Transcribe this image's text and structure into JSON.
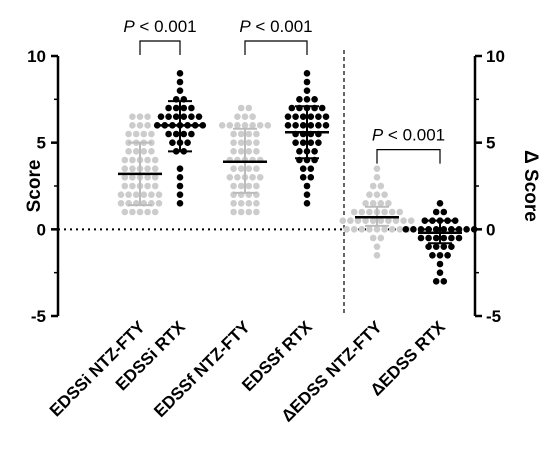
{
  "chart_data": {
    "type": "scatter",
    "subtype": "dot-plot with mean and SD",
    "title": "",
    "ylabel_left": "Score",
    "ylabel_right": "Δ Score",
    "ylim_left": [
      -5,
      10
    ],
    "ylim_right": [
      -5,
      10
    ],
    "yticks": [
      "-5",
      "0",
      "5",
      "10"
    ],
    "reference_line_y": 0,
    "colors": {
      "ntz_fty": "#cccccc",
      "rtx": "#000000",
      "mean_light": "#bbbbbb"
    },
    "categories": [
      "EDSSi NTZ-FTY",
      "EDSSi RTX",
      "EDSSf NTZ-FTY",
      "EDSSf RTX",
      "ΔEDSS NTZ-FTY",
      "ΔEDSS RTX"
    ],
    "series": [
      {
        "category": "EDSSi NTZ-FTY",
        "axis": "left",
        "color": "#cccccc",
        "mean": 3.2,
        "sd_low": 1.4,
        "sd_high": 5.0,
        "points": [
          1.0,
          1.0,
          1.0,
          1.0,
          1.0,
          1.5,
          1.5,
          1.5,
          1.5,
          1.5,
          1.5,
          2.0,
          2.0,
          2.0,
          2.0,
          2.0,
          2.0,
          2.5,
          2.5,
          2.5,
          2.5,
          2.5,
          3.0,
          3.0,
          3.0,
          3.0,
          3.0,
          3.5,
          3.5,
          3.5,
          3.5,
          3.5,
          4.0,
          4.0,
          4.0,
          4.0,
          4.0,
          4.5,
          4.5,
          4.5,
          4.5,
          5.0,
          5.0,
          5.0,
          5.0,
          5.5,
          5.5,
          5.5,
          5.5,
          6.0,
          6.0,
          6.0,
          6.5,
          6.5,
          6.5
        ]
      },
      {
        "category": "EDSSi RTX",
        "axis": "left",
        "color": "#000000",
        "mean": 6.0,
        "sd_low": 4.5,
        "sd_high": 7.4,
        "points": [
          1.5,
          2.0,
          2.5,
          3.0,
          3.5,
          4.5,
          4.5,
          5.0,
          5.0,
          5.0,
          5.5,
          5.5,
          5.5,
          5.5,
          6.0,
          6.0,
          6.0,
          6.0,
          6.0,
          6.0,
          6.0,
          6.5,
          6.5,
          6.5,
          6.5,
          6.5,
          6.5,
          7.0,
          7.0,
          7.0,
          7.0,
          7.5,
          7.5,
          8.0,
          8.5,
          9.0
        ]
      },
      {
        "category": "EDSSf NTZ-FTY",
        "axis": "left",
        "color": "#cccccc",
        "mean": 3.9,
        "sd_low": 2.1,
        "sd_high": 5.8,
        "points": [
          1.0,
          1.0,
          1.0,
          1.0,
          1.5,
          1.5,
          1.5,
          1.5,
          2.0,
          2.0,
          2.0,
          2.0,
          2.5,
          2.5,
          2.5,
          2.5,
          3.0,
          3.0,
          3.0,
          3.0,
          3.0,
          3.5,
          3.5,
          3.5,
          3.5,
          4.0,
          4.0,
          4.0,
          4.0,
          4.0,
          4.5,
          4.5,
          4.5,
          4.5,
          5.0,
          5.0,
          5.0,
          5.0,
          5.5,
          5.5,
          5.5,
          5.5,
          6.0,
          6.0,
          6.0,
          6.0,
          6.0,
          6.0,
          6.0,
          6.5,
          6.5,
          6.5,
          7.0,
          7.0
        ]
      },
      {
        "category": "EDSSf RTX",
        "axis": "left",
        "color": "#000000",
        "mean": 5.6,
        "sd_low": 4.1,
        "sd_high": 7.1,
        "points": [
          1.5,
          2.0,
          2.5,
          3.0,
          3.0,
          3.5,
          3.5,
          4.0,
          4.0,
          4.0,
          4.5,
          4.5,
          4.5,
          5.0,
          5.0,
          5.0,
          5.0,
          5.5,
          5.5,
          5.5,
          5.5,
          6.0,
          6.0,
          6.0,
          6.0,
          6.0,
          6.0,
          6.5,
          6.5,
          6.5,
          6.5,
          6.5,
          6.5,
          7.0,
          7.0,
          7.0,
          7.0,
          7.0,
          7.5,
          7.5,
          7.5,
          8.0,
          8.5,
          9.0
        ]
      },
      {
        "category": "ΔEDSS NTZ-FTY",
        "axis": "right",
        "color": "#cccccc",
        "mean": 0.7,
        "sd_low": 0.2,
        "sd_high": 1.3,
        "points": [
          -1.5,
          -1.0,
          -0.5,
          -0.5,
          0.0,
          0.0,
          0.0,
          0.0,
          0.0,
          0.0,
          0.0,
          0.0,
          0.0,
          0.5,
          0.5,
          0.5,
          0.5,
          0.5,
          0.5,
          0.5,
          0.5,
          0.5,
          0.5,
          1.0,
          1.0,
          1.0,
          1.0,
          1.0,
          1.0,
          1.0,
          1.5,
          1.5,
          1.5,
          1.5,
          2.0,
          2.0,
          2.0,
          2.5,
          2.5,
          3.0,
          3.5
        ]
      },
      {
        "category": "ΔEDSS RTX",
        "axis": "right",
        "color": "#000000",
        "mean": -0.2,
        "sd_low": -0.8,
        "sd_high": 0.5,
        "points": [
          -3.0,
          -3.0,
          -2.5,
          -2.0,
          -1.5,
          -1.5,
          -1.5,
          -1.0,
          -1.0,
          -1.0,
          -1.0,
          -0.5,
          -0.5,
          -0.5,
          -0.5,
          -0.5,
          -0.5,
          0.0,
          0.0,
          0.0,
          0.0,
          0.0,
          0.0,
          0.0,
          0.0,
          0.0,
          0.0,
          0.5,
          0.5,
          0.5,
          0.5,
          0.5,
          1.0,
          1.0,
          1.5
        ]
      }
    ],
    "comparisons": [
      {
        "from": 0,
        "to": 1,
        "label_italic": "P",
        "label_rest": " < 0.001",
        "bracket_y": 10.5
      },
      {
        "from": 2,
        "to": 3,
        "label_italic": "P",
        "label_rest": " < 0.001",
        "bracket_y": 10.5
      },
      {
        "from": 4,
        "to": 5,
        "label_italic": "P",
        "label_rest": " < 0.001",
        "bracket_y": 4.6
      }
    ]
  }
}
